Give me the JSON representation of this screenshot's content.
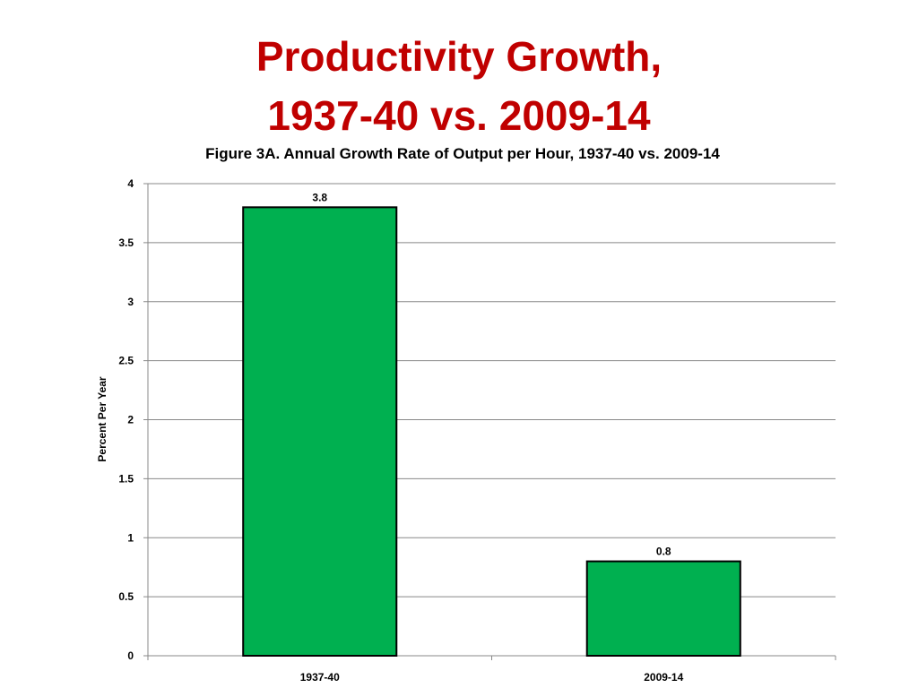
{
  "slide": {
    "title_line1": "Productivity Growth,",
    "title_line2": "1937-40 vs. 2009-14"
  },
  "chart_data": {
    "type": "bar",
    "title": "Figure 3A. Annual Growth Rate of Output per Hour, 1937-40 vs. 2009-14",
    "xlabel": "",
    "ylabel": "Percent Per Year",
    "categories": [
      "1937-40",
      "2009-14"
    ],
    "values": [
      3.8,
      0.8
    ],
    "data_labels": [
      "3.8",
      "0.8"
    ],
    "ylim": [
      0,
      4
    ],
    "yticks": [
      0,
      0.5,
      1,
      1.5,
      2,
      2.5,
      3,
      3.5,
      4
    ],
    "ytick_labels": [
      "0",
      "0.5",
      "1",
      "1.5",
      "2",
      "2.5",
      "3",
      "3.5",
      "4"
    ],
    "grid": true,
    "legend": "none",
    "bar_color": "#00b050",
    "bar_outline_color": "#000000",
    "title_color": "#c00000"
  }
}
